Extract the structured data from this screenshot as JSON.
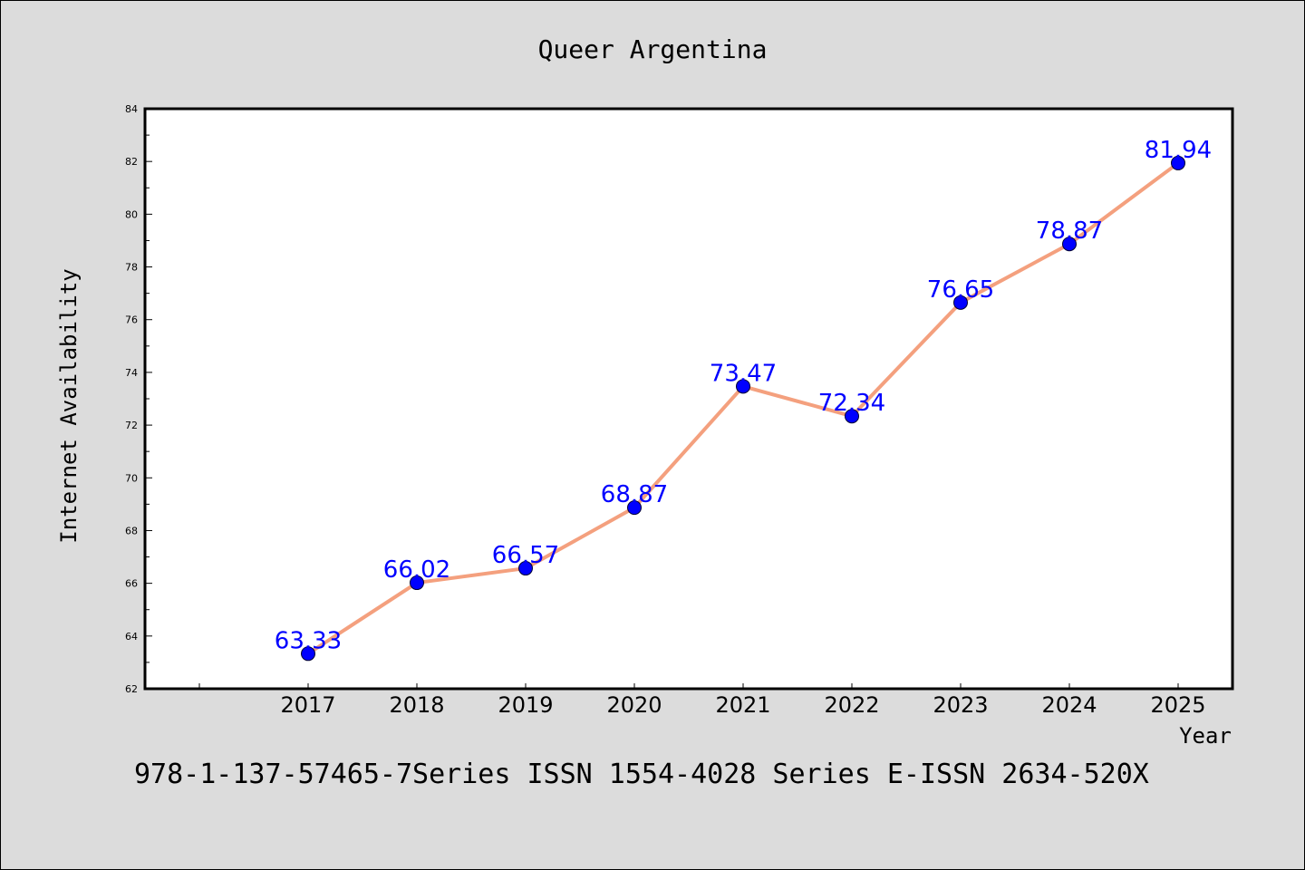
{
  "chart_data": {
    "type": "line",
    "title": "Queer Argentina",
    "xlabel": "Year",
    "ylabel": "Internet Availability",
    "categories": [
      "2017",
      "2018",
      "2019",
      "2020",
      "2021",
      "2022",
      "2023",
      "2024",
      "2025"
    ],
    "series": [
      {
        "values": [
          63.33,
          66.02,
          66.57,
          68.87,
          73.47,
          72.34,
          76.65,
          78.87,
          81.94
        ]
      }
    ],
    "data_labels": [
      "63.33",
      "66.02",
      "66.57",
      "68.87",
      "73.47",
      "72.34",
      "76.65",
      "78.87",
      "81.94"
    ],
    "ylim": [
      62,
      84
    ],
    "yticks": [
      "62",
      "64",
      "66",
      "68",
      "70",
      "72",
      "74",
      "76",
      "78",
      "80",
      "82",
      "84"
    ],
    "grid": false,
    "line_color": "#f4a07e",
    "marker_color": "#0000ff",
    "label_color": "#0000ff"
  },
  "footer": {
    "text": "978-1-137-57465-7Series ISSN 1554-4028 Series E-ISSN 2634-520X"
  },
  "colors": {
    "background": "#dcdcdc",
    "plot_background": "#ffffff"
  }
}
